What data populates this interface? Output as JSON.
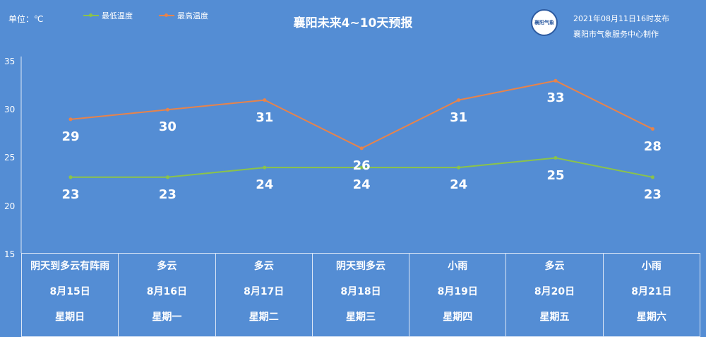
{
  "header": {
    "unit": "单位：℃",
    "title": "襄阳未来4~10天预报",
    "issued": "2021年08月11日16时发布",
    "maker": "襄阳市气象服务中心制作",
    "logo_text": "襄阳气象"
  },
  "legend": {
    "low": "最低温度",
    "high": "最高温度"
  },
  "colors": {
    "background": "#548dd4",
    "low": "#8bc34a",
    "high": "#e8834a",
    "grid": "#dbe6f6"
  },
  "chart_data": {
    "type": "line",
    "x": [
      "8月15日",
      "8月16日",
      "8月17日",
      "8月18日",
      "8月19日",
      "8月20日",
      "8月21日"
    ],
    "series": [
      {
        "name": "最低温度",
        "values": [
          23,
          23,
          24,
          24,
          24,
          25,
          23
        ]
      },
      {
        "name": "最高温度",
        "values": [
          29,
          30,
          31,
          26,
          31,
          33,
          28
        ]
      }
    ],
    "yticks": [
      "35",
      "30",
      "25",
      "20",
      "15"
    ],
    "ylim": [
      15,
      35
    ],
    "grid": false
  },
  "days": [
    {
      "weather": "阴天到多云有阵雨",
      "date": "8月15日",
      "week": "星期日"
    },
    {
      "weather": "多云",
      "date": "8月16日",
      "week": "星期一"
    },
    {
      "weather": "多云",
      "date": "8月17日",
      "week": "星期二"
    },
    {
      "weather": "阴天到多云",
      "date": "8月18日",
      "week": "星期三"
    },
    {
      "weather": "小雨",
      "date": "8月19日",
      "week": "星期四"
    },
    {
      "weather": "多云",
      "date": "8月20日",
      "week": "星期五"
    },
    {
      "weather": "小雨",
      "date": "8月21日",
      "week": "星期六"
    }
  ]
}
